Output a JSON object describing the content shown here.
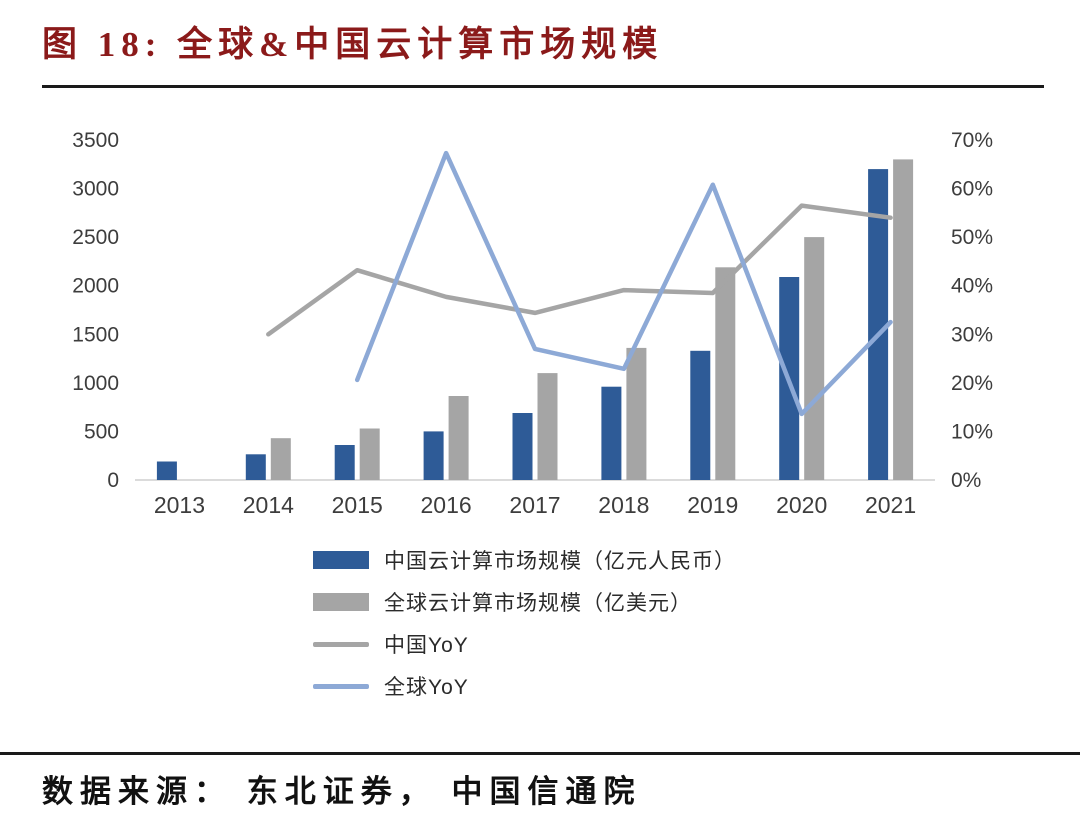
{
  "title": "图 18: 全球&中国云计算市场规模",
  "source": "数据来源： 东北证券， 中国信通院",
  "colors": {
    "title": "#8B1A1A",
    "china_bar": "#2E5B97",
    "global_bar": "#A5A5A5",
    "china_yoy_line": "#A5A5A5",
    "global_yoy_line": "#8DA9D6",
    "axis_text": "#3d3d3d",
    "rule": "#1A1A1A"
  },
  "chart_data": {
    "type": "bar",
    "subtype": "combo-bar-line-dual-axis",
    "categories": [
      "2013",
      "2014",
      "2015",
      "2016",
      "2017",
      "2018",
      "2019",
      "2020",
      "2021"
    ],
    "series": [
      {
        "name": "中国云计算市场规模（亿元人民币）",
        "type": "bar",
        "axis": "left",
        "values": [
          190,
          265,
          360,
          500,
          690,
          960,
          1330,
          2090,
          3200
        ]
      },
      {
        "name": "全球云计算市场规模（亿美元）",
        "type": "bar",
        "axis": "left",
        "values": [
          null,
          430,
          530,
          865,
          1100,
          1360,
          2190,
          2500,
          3300
        ]
      },
      {
        "name": "中国YoY",
        "type": "line",
        "axis": "right",
        "values": [
          null,
          30.0,
          43.2,
          37.7,
          34.4,
          39.1,
          38.5,
          56.5,
          54.0
        ]
      },
      {
        "name": "全球YoY",
        "type": "line",
        "axis": "right",
        "values": [
          null,
          null,
          20.6,
          67.3,
          27.0,
          22.9,
          60.8,
          13.6,
          32.5
        ]
      }
    ],
    "left_axis": {
      "min": 0,
      "max": 3500,
      "step": 500,
      "ticks": [
        "0",
        "500",
        "1000",
        "1500",
        "2000",
        "2500",
        "3000",
        "3500"
      ]
    },
    "right_axis": {
      "min": 0,
      "max": 70,
      "step": 10,
      "ticks": [
        "0%",
        "10%",
        "20%",
        "30%",
        "40%",
        "50%",
        "60%",
        "70%"
      ]
    },
    "grid": false,
    "legend_position": "bottom"
  }
}
